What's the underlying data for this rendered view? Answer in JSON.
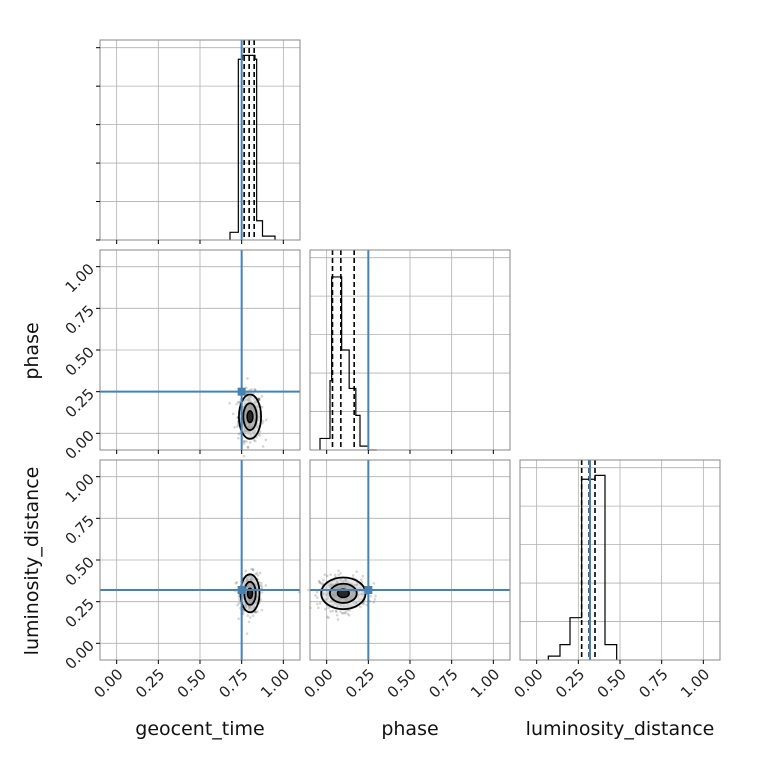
{
  "chart_data": {
    "type": "corner",
    "parameters": [
      "geocent_time",
      "phase",
      "luminosity_distance"
    ],
    "axis_range": [
      -0.1,
      1.1
    ],
    "ticks": [
      0.0,
      0.25,
      0.5,
      0.75,
      1.0
    ],
    "tick_labels": [
      "0.00",
      "0.25",
      "0.50",
      "0.75",
      "1.00"
    ],
    "grid": true,
    "truths": {
      "geocent_time": 0.75,
      "phase": 0.25,
      "luminosity_distance": 0.32
    },
    "truth_color": "#4682b4",
    "marginals": [
      {
        "parameter": "geocent_time",
        "bins": [
          0.68,
          0.73,
          0.755,
          0.775,
          0.79,
          0.81,
          0.83,
          0.84,
          0.875,
          0.95
        ],
        "counts": [
          2,
          47,
          48,
          48,
          48,
          48,
          47,
          5,
          1
        ],
        "ymax": 52,
        "quantiles": [
          0.765,
          0.795,
          0.825
        ]
      },
      {
        "parameter": "phase",
        "bins": [
          -0.04,
          0.02,
          0.03,
          0.09,
          0.135,
          0.175,
          0.2,
          0.25,
          0.3
        ],
        "counts": [
          3,
          18,
          45,
          26,
          16,
          9,
          1,
          0
        ],
        "ymax": 52,
        "quantiles": [
          0.035,
          0.085,
          0.165
        ]
      },
      {
        "parameter": "luminosity_distance",
        "bins": [
          0.07,
          0.14,
          0.2,
          0.27,
          0.35,
          0.41,
          0.48
        ],
        "counts": [
          1,
          4,
          11,
          47,
          48,
          4
        ],
        "ymax": 52,
        "quantiles": [
          0.27,
          0.315,
          0.35
        ]
      }
    ],
    "joint_2d": [
      {
        "x": "geocent_time",
        "y": "phase",
        "center": [
          0.8,
          0.1
        ],
        "spread": [
          0.035,
          0.07
        ]
      },
      {
        "x": "geocent_time",
        "y": "luminosity_distance",
        "center": [
          0.8,
          0.3
        ],
        "spread": [
          0.03,
          0.06
        ]
      },
      {
        "x": "phase",
        "y": "luminosity_distance",
        "center": [
          0.1,
          0.3
        ],
        "spread": [
          0.07,
          0.05
        ]
      }
    ]
  }
}
